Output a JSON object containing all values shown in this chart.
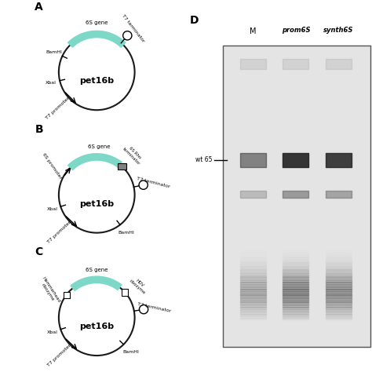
{
  "bg_color": "#ffffff",
  "teal_color": "#7dd8c8",
  "circle_color": "#1a1a1a",
  "panel_labels": [
    "A",
    "B",
    "C",
    "D"
  ],
  "plasmid_name": "pet16b",
  "gel": {
    "lane_labels": [
      "M",
      "prom6S",
      "synth6S"
    ],
    "wt65_label": "wt 65",
    "label_D": "D",
    "bg_color": "#e8e8e8",
    "border_color": "#666666"
  }
}
